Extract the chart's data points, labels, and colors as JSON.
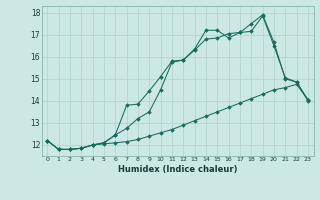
{
  "xlabel": "Humidex (Indice chaleur)",
  "bg_color": "#cce8e4",
  "line_color": "#1a6b5e",
  "grid_color": "#b0d0cc",
  "xlim": [
    -0.5,
    23.5
  ],
  "ylim": [
    11.5,
    18.3
  ],
  "xticks": [
    0,
    1,
    2,
    3,
    4,
    5,
    6,
    7,
    8,
    9,
    10,
    11,
    12,
    13,
    14,
    15,
    16,
    17,
    18,
    19,
    20,
    21,
    22,
    23
  ],
  "yticks": [
    12,
    13,
    14,
    15,
    16,
    17,
    18
  ],
  "line1_x": [
    0,
    1,
    2,
    3,
    4,
    5,
    6,
    7,
    8,
    9,
    10,
    11,
    12,
    13,
    14,
    15,
    16,
    17,
    18,
    19,
    20,
    21,
    22,
    23
  ],
  "line1_y": [
    12.2,
    11.8,
    11.8,
    11.85,
    12.0,
    12.1,
    12.45,
    12.75,
    13.2,
    13.5,
    14.5,
    15.75,
    15.85,
    16.35,
    17.2,
    17.2,
    16.85,
    17.1,
    17.15,
    17.85,
    16.5,
    15.05,
    14.85,
    14.0
  ],
  "line2_x": [
    0,
    1,
    2,
    3,
    4,
    5,
    6,
    7,
    8,
    9,
    10,
    11,
    12,
    13,
    14,
    15,
    16,
    17,
    18,
    19,
    20,
    21,
    22,
    23
  ],
  "line2_y": [
    12.2,
    11.8,
    11.8,
    11.85,
    12.0,
    12.1,
    12.45,
    13.8,
    13.85,
    14.45,
    15.1,
    15.8,
    15.85,
    16.3,
    16.8,
    16.85,
    17.05,
    17.1,
    17.5,
    17.9,
    16.65,
    15.0,
    14.85,
    14.05
  ],
  "line3_x": [
    0,
    1,
    2,
    3,
    4,
    5,
    6,
    7,
    8,
    9,
    10,
    11,
    12,
    13,
    14,
    15,
    16,
    17,
    18,
    19,
    20,
    21,
    22,
    23
  ],
  "line3_y": [
    12.2,
    11.8,
    11.8,
    11.85,
    12.0,
    12.05,
    12.1,
    12.15,
    12.25,
    12.4,
    12.55,
    12.7,
    12.9,
    13.1,
    13.3,
    13.5,
    13.7,
    13.9,
    14.1,
    14.3,
    14.5,
    14.6,
    14.75,
    14.05
  ]
}
